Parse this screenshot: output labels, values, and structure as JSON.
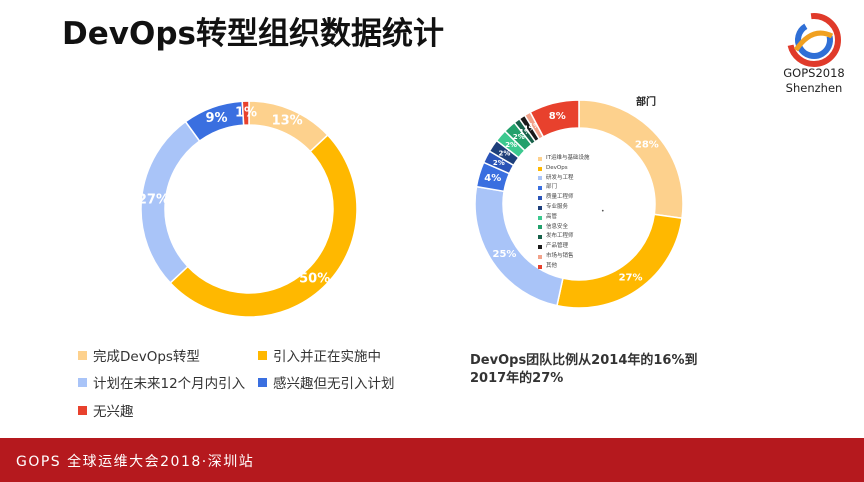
{
  "title": "DevOps转型组织数据统计",
  "logo": {
    "line1": "GOPS2018",
    "line2": "Shenzhen"
  },
  "chart_data": [
    {
      "type": "pie",
      "variant": "donut",
      "title": "",
      "categories": [
        "完成DevOps转型",
        "引入并正在实施中",
        "计划在未来12个月内引入",
        "感兴趣但无引入计划",
        "无兴趣"
      ],
      "values": [
        13,
        50,
        27,
        9,
        1
      ],
      "labels": [
        "13%",
        "50%",
        "27%",
        "9%",
        "1%"
      ],
      "colors": [
        "#fdd18d",
        "#ffb800",
        "#a9c4f8",
        "#3a6fe0",
        "#e8412d"
      ],
      "legend_position": "bottom"
    },
    {
      "type": "pie",
      "variant": "donut",
      "title": "部门",
      "categories": [
        "IT运维与基础设施",
        "DevOps",
        "研发与工程",
        "部门",
        "质量工程师",
        "专业服务",
        "高管",
        "信息安全",
        "发布工程师",
        "产品管理",
        "市场与销售",
        "其他"
      ],
      "values": [
        28,
        27,
        25,
        4,
        2,
        2,
        2,
        2,
        1,
        1,
        1,
        8
      ],
      "labels": [
        "28%",
        "27%",
        "25%",
        "4%",
        "2%",
        "2%",
        "2%",
        "2%",
        "1%",
        "1%",
        "1%",
        "8%"
      ],
      "colors": [
        "#fdd18d",
        "#ffb800",
        "#a9c4f8",
        "#3a6fe0",
        "#2b54b8",
        "#1e3f7a",
        "#3cc98f",
        "#22a06b",
        "#17614a",
        "#1a1a1a",
        "#f2a28a",
        "#e8412d"
      ],
      "legend_position": "center"
    }
  ],
  "note": {
    "line1": "DevOps团队比例从2014年的16%到",
    "line2": "2017年的27%"
  },
  "footer": {
    "text": "GOPS 全球运维大会2018·深圳站"
  }
}
